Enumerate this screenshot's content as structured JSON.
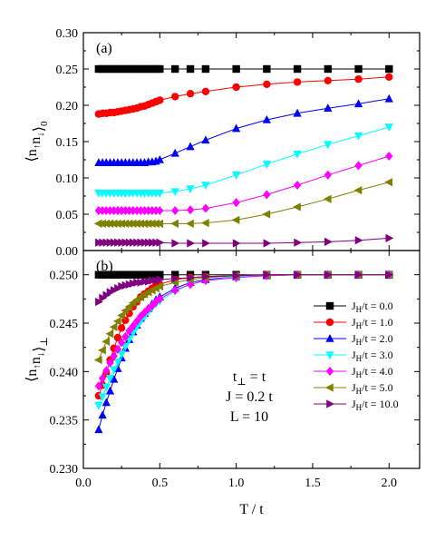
{
  "colors": {
    "JH0": "#000000",
    "JH1": "#ff0000",
    "JH2": "#0000ff",
    "JH3": "#00ffff",
    "JH4": "#ff00ff",
    "JH5": "#808000",
    "JH10": "#800080"
  },
  "markers": {
    "JH0": "square",
    "JH1": "circle",
    "JH2": "triangle-up",
    "JH3": "triangle-down",
    "JH4": "diamond",
    "JH5": "triangle-left",
    "JH10": "triangle-right"
  },
  "chart_data": [
    {
      "type": "line",
      "panel_label": "(a)",
      "xlabel": "T / t",
      "ylabel": "⟨n↑n↓⟩0",
      "xlim": [
        0.0,
        2.2
      ],
      "ylim": [
        0.0,
        0.3
      ],
      "xticks": [
        "0.0",
        "0.5",
        "1.0",
        "1.5",
        "2.0"
      ],
      "xtick_values": [
        0.0,
        0.5,
        1.0,
        1.5,
        2.0
      ],
      "yticks": [
        "0.00",
        "0.05",
        "0.10",
        "0.15",
        "0.20",
        "0.25",
        "0.30"
      ],
      "ytick_values": [
        0.0,
        0.05,
        0.1,
        0.15,
        0.2,
        0.25,
        0.3
      ],
      "series": [
        {
          "key": "JH0",
          "x": [
            0.1,
            0.125,
            0.15,
            0.175,
            0.2,
            0.225,
            0.25,
            0.275,
            0.3,
            0.325,
            0.35,
            0.375,
            0.4,
            0.425,
            0.45,
            0.475,
            0.5,
            0.6,
            0.7,
            0.8,
            1.0,
            1.2,
            1.4,
            1.6,
            1.8,
            2.0
          ],
          "y": [
            0.25,
            0.25,
            0.25,
            0.25,
            0.25,
            0.25,
            0.25,
            0.25,
            0.25,
            0.25,
            0.25,
            0.25,
            0.25,
            0.25,
            0.25,
            0.25,
            0.25,
            0.25,
            0.25,
            0.25,
            0.25,
            0.25,
            0.25,
            0.25,
            0.25,
            0.25
          ]
        },
        {
          "key": "JH1",
          "x": [
            0.1,
            0.125,
            0.15,
            0.175,
            0.2,
            0.225,
            0.25,
            0.275,
            0.3,
            0.325,
            0.35,
            0.375,
            0.4,
            0.425,
            0.45,
            0.475,
            0.5,
            0.6,
            0.7,
            0.8,
            1.0,
            1.2,
            1.4,
            1.6,
            1.8,
            2.0
          ],
          "y": [
            0.188,
            0.189,
            0.189,
            0.19,
            0.19,
            0.191,
            0.192,
            0.193,
            0.194,
            0.195,
            0.196,
            0.198,
            0.199,
            0.201,
            0.203,
            0.205,
            0.207,
            0.212,
            0.216,
            0.219,
            0.225,
            0.229,
            0.232,
            0.234,
            0.236,
            0.239
          ]
        },
        {
          "key": "JH2",
          "x": [
            0.1,
            0.125,
            0.15,
            0.175,
            0.2,
            0.225,
            0.25,
            0.275,
            0.3,
            0.325,
            0.35,
            0.375,
            0.4,
            0.425,
            0.45,
            0.475,
            0.5,
            0.6,
            0.7,
            0.8,
            1.0,
            1.2,
            1.4,
            1.6,
            1.8,
            2.0
          ],
          "y": [
            0.121,
            0.121,
            0.121,
            0.121,
            0.121,
            0.121,
            0.121,
            0.121,
            0.121,
            0.121,
            0.121,
            0.121,
            0.121,
            0.122,
            0.122,
            0.123,
            0.125,
            0.134,
            0.143,
            0.152,
            0.168,
            0.18,
            0.189,
            0.196,
            0.202,
            0.209
          ]
        },
        {
          "key": "JH3",
          "x": [
            0.1,
            0.125,
            0.15,
            0.175,
            0.2,
            0.225,
            0.25,
            0.275,
            0.3,
            0.325,
            0.35,
            0.375,
            0.4,
            0.425,
            0.45,
            0.475,
            0.5,
            0.6,
            0.7,
            0.8,
            1.0,
            1.2,
            1.4,
            1.6,
            1.8,
            2.0
          ],
          "y": [
            0.079,
            0.079,
            0.079,
            0.079,
            0.079,
            0.079,
            0.079,
            0.079,
            0.079,
            0.079,
            0.079,
            0.079,
            0.079,
            0.079,
            0.079,
            0.079,
            0.079,
            0.081,
            0.085,
            0.09,
            0.104,
            0.119,
            0.133,
            0.146,
            0.158,
            0.17
          ]
        },
        {
          "key": "JH4",
          "x": [
            0.1,
            0.125,
            0.15,
            0.175,
            0.2,
            0.225,
            0.25,
            0.275,
            0.3,
            0.325,
            0.35,
            0.375,
            0.4,
            0.425,
            0.45,
            0.475,
            0.5,
            0.6,
            0.7,
            0.8,
            1.0,
            1.2,
            1.4,
            1.6,
            1.8,
            2.0
          ],
          "y": [
            0.055,
            0.055,
            0.055,
            0.055,
            0.055,
            0.055,
            0.055,
            0.055,
            0.055,
            0.055,
            0.055,
            0.055,
            0.055,
            0.055,
            0.055,
            0.055,
            0.055,
            0.055,
            0.056,
            0.058,
            0.066,
            0.077,
            0.09,
            0.104,
            0.117,
            0.13
          ]
        },
        {
          "key": "JH5",
          "x": [
            0.1,
            0.125,
            0.15,
            0.175,
            0.2,
            0.225,
            0.25,
            0.275,
            0.3,
            0.325,
            0.35,
            0.375,
            0.4,
            0.425,
            0.45,
            0.475,
            0.5,
            0.6,
            0.7,
            0.8,
            1.0,
            1.2,
            1.4,
            1.6,
            1.8,
            2.0
          ],
          "y": [
            0.037,
            0.037,
            0.037,
            0.037,
            0.037,
            0.037,
            0.037,
            0.037,
            0.037,
            0.037,
            0.037,
            0.037,
            0.037,
            0.037,
            0.037,
            0.037,
            0.037,
            0.037,
            0.037,
            0.038,
            0.042,
            0.05,
            0.06,
            0.071,
            0.083,
            0.094
          ]
        },
        {
          "key": "JH10",
          "x": [
            0.1,
            0.125,
            0.15,
            0.175,
            0.2,
            0.225,
            0.25,
            0.275,
            0.3,
            0.325,
            0.35,
            0.375,
            0.4,
            0.425,
            0.45,
            0.475,
            0.5,
            0.6,
            0.7,
            0.8,
            1.0,
            1.2,
            1.4,
            1.6,
            1.8,
            2.0
          ],
          "y": [
            0.011,
            0.011,
            0.011,
            0.011,
            0.011,
            0.011,
            0.011,
            0.011,
            0.011,
            0.011,
            0.011,
            0.011,
            0.011,
            0.011,
            0.011,
            0.011,
            0.011,
            0.01,
            0.01,
            0.01,
            0.01,
            0.01,
            0.011,
            0.012,
            0.014,
            0.017
          ]
        }
      ]
    },
    {
      "type": "line",
      "panel_label": "(b)",
      "xlabel": "T / t",
      "ylabel": "⟨n↑n↓⟩⊥",
      "xlim": [
        0.0,
        2.2
      ],
      "ylim": [
        0.23,
        0.2525
      ],
      "xticks": [
        "0.0",
        "0.5",
        "1.0",
        "1.5",
        "2.0"
      ],
      "xtick_values": [
        0.0,
        0.5,
        1.0,
        1.5,
        2.0
      ],
      "yticks": [
        "0.230",
        "0.235",
        "0.240",
        "0.245",
        "0.250"
      ],
      "ytick_values": [
        0.23,
        0.235,
        0.24,
        0.245,
        0.25
      ],
      "legend_position": "right",
      "annotation_lines": [
        "t⊥ = t",
        "J = 0.2 t",
        "L = 10"
      ],
      "series": [
        {
          "key": "JH0",
          "name": "JH/t = 0.0",
          "x": [
            0.1,
            0.125,
            0.15,
            0.175,
            0.2,
            0.225,
            0.25,
            0.275,
            0.3,
            0.325,
            0.35,
            0.375,
            0.4,
            0.425,
            0.45,
            0.475,
            0.5,
            0.6,
            0.7,
            0.8,
            1.0,
            1.2,
            1.4,
            1.6,
            1.8,
            2.0
          ],
          "y": [
            0.25,
            0.25,
            0.25,
            0.25,
            0.25,
            0.25,
            0.25,
            0.25,
            0.25,
            0.25,
            0.25,
            0.25,
            0.25,
            0.25,
            0.25,
            0.25,
            0.25,
            0.25,
            0.25,
            0.25,
            0.25,
            0.25,
            0.25,
            0.25,
            0.25,
            0.25
          ]
        },
        {
          "key": "JH1",
          "name": "JH/t = 1.0",
          "x": [
            0.1,
            0.125,
            0.15,
            0.175,
            0.2,
            0.225,
            0.25,
            0.275,
            0.3,
            0.325,
            0.35,
            0.375,
            0.4,
            0.425,
            0.45,
            0.475,
            0.5,
            0.6,
            0.7,
            0.8,
            1.0,
            1.2,
            1.4,
            1.6,
            1.8,
            2.0
          ],
          "y": [
            0.2375,
            0.2386,
            0.2398,
            0.2412,
            0.2424,
            0.2435,
            0.2445,
            0.2453,
            0.246,
            0.2467,
            0.2472,
            0.2477,
            0.248,
            0.2483,
            0.2486,
            0.2488,
            0.249,
            0.2495,
            0.2497,
            0.2498,
            0.2499,
            0.25,
            0.25,
            0.25,
            0.25,
            0.25
          ]
        },
        {
          "key": "JH2",
          "name": "JH/t = 2.0",
          "x": [
            0.1,
            0.125,
            0.15,
            0.175,
            0.2,
            0.225,
            0.25,
            0.275,
            0.3,
            0.325,
            0.35,
            0.375,
            0.4,
            0.425,
            0.45,
            0.475,
            0.5,
            0.6,
            0.7,
            0.8,
            1.0,
            1.2,
            1.4,
            1.6,
            1.8,
            2.0
          ],
          "y": [
            0.234,
            0.2355,
            0.2368,
            0.238,
            0.2392,
            0.2403,
            0.2414,
            0.2424,
            0.2433,
            0.2441,
            0.2448,
            0.2455,
            0.246,
            0.2465,
            0.247,
            0.2474,
            0.2477,
            0.2486,
            0.2492,
            0.2495,
            0.2498,
            0.2499,
            0.25,
            0.25,
            0.25,
            0.25
          ]
        },
        {
          "key": "JH3",
          "name": "JH/t = 3.0",
          "x": [
            0.1,
            0.125,
            0.15,
            0.175,
            0.2,
            0.225,
            0.25,
            0.275,
            0.3,
            0.325,
            0.35,
            0.375,
            0.4,
            0.425,
            0.45,
            0.475,
            0.5,
            0.6,
            0.7,
            0.8,
            1.0,
            1.2,
            1.4,
            1.6,
            1.8,
            2.0
          ],
          "y": [
            0.2365,
            0.2374,
            0.2384,
            0.2393,
            0.2402,
            0.241,
            0.2418,
            0.2426,
            0.2433,
            0.244,
            0.2446,
            0.2452,
            0.2457,
            0.2462,
            0.2466,
            0.247,
            0.2473,
            0.2483,
            0.249,
            0.2494,
            0.2498,
            0.2499,
            0.25,
            0.25,
            0.25,
            0.25
          ]
        },
        {
          "key": "JH4",
          "name": "JH/t = 4.0",
          "x": [
            0.1,
            0.125,
            0.15,
            0.175,
            0.2,
            0.225,
            0.25,
            0.275,
            0.3,
            0.325,
            0.35,
            0.375,
            0.4,
            0.425,
            0.45,
            0.475,
            0.5,
            0.6,
            0.7,
            0.8,
            1.0,
            1.2,
            1.4,
            1.6,
            1.8,
            2.0
          ],
          "y": [
            0.2385,
            0.2393,
            0.2401,
            0.2409,
            0.2416,
            0.2423,
            0.243,
            0.2436,
            0.2442,
            0.2447,
            0.2452,
            0.2457,
            0.2461,
            0.2465,
            0.2468,
            0.2472,
            0.2475,
            0.2484,
            0.249,
            0.2494,
            0.2497,
            0.2499,
            0.25,
            0.25,
            0.25,
            0.25
          ]
        },
        {
          "key": "JH5",
          "name": "JH/t = 5.0",
          "x": [
            0.1,
            0.125,
            0.15,
            0.175,
            0.2,
            0.225,
            0.25,
            0.275,
            0.3,
            0.325,
            0.35,
            0.375,
            0.4,
            0.425,
            0.45,
            0.475,
            0.5,
            0.6,
            0.7,
            0.8,
            1.0,
            1.2,
            1.4,
            1.6,
            1.8,
            2.0
          ],
          "y": [
            0.2412,
            0.2422,
            0.2431,
            0.2439,
            0.2446,
            0.2452,
            0.2458,
            0.2463,
            0.2467,
            0.2471,
            0.2474,
            0.2477,
            0.248,
            0.2482,
            0.2484,
            0.2486,
            0.2488,
            0.2492,
            0.2495,
            0.2497,
            0.2499,
            0.25,
            0.25,
            0.25,
            0.25,
            0.25
          ]
        },
        {
          "key": "JH10",
          "name": "JH/t = 10.0",
          "x": [
            0.1,
            0.125,
            0.15,
            0.175,
            0.2,
            0.225,
            0.25,
            0.275,
            0.3,
            0.325,
            0.35,
            0.375,
            0.4,
            0.425,
            0.45,
            0.475,
            0.5,
            0.6,
            0.7,
            0.8,
            1.0,
            1.2,
            1.4,
            1.6,
            1.8,
            2.0
          ],
          "y": [
            0.2472,
            0.2476,
            0.2479,
            0.2482,
            0.2484,
            0.2486,
            0.2488,
            0.2489,
            0.249,
            0.2491,
            0.2492,
            0.2492,
            0.2493,
            0.2493,
            0.2494,
            0.2494,
            0.2495,
            0.2496,
            0.2497,
            0.2498,
            0.2499,
            0.25,
            0.25,
            0.25,
            0.25,
            0.25
          ]
        }
      ]
    }
  ]
}
